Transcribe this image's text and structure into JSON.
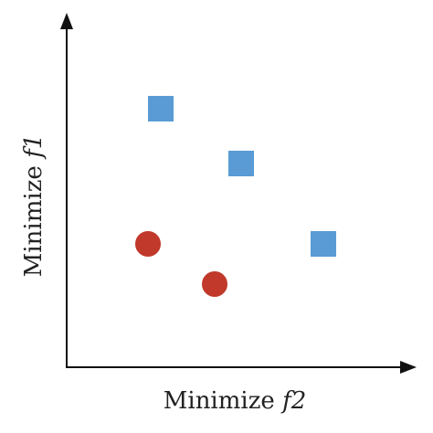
{
  "axes": {
    "x_label_prefix": "Minimize ",
    "x_label_var": "f2",
    "y_label_prefix": "Minimize ",
    "y_label_var": "f1"
  },
  "colors": {
    "square": "#5a9bd5",
    "circle": "#c0392b",
    "axis": "#111111"
  },
  "points": {
    "squares": [
      {
        "id": "sq-1"
      },
      {
        "id": "sq-2"
      },
      {
        "id": "sq-3"
      }
    ],
    "circles": [
      {
        "id": "circle-1"
      },
      {
        "id": "circle-2"
      }
    ]
  }
}
